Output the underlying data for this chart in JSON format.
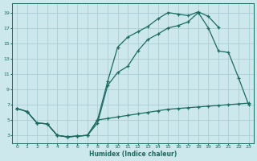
{
  "xlabel": "Humidex (Indice chaleur)",
  "bg_color": "#cce8ec",
  "grid_color": "#aacdd4",
  "line_color": "#1a6b60",
  "xlim": [
    -0.5,
    23.5
  ],
  "ylim": [
    2.0,
    20.2
  ],
  "xticks": [
    0,
    1,
    2,
    3,
    4,
    5,
    6,
    7,
    8,
    9,
    10,
    11,
    12,
    13,
    14,
    15,
    16,
    17,
    18,
    19,
    20,
    21,
    22,
    23
  ],
  "yticks": [
    3,
    5,
    7,
    9,
    11,
    13,
    15,
    17,
    19
  ],
  "line1_x": [
    0,
    1,
    2,
    3,
    4,
    5,
    6,
    7,
    8,
    9,
    10,
    11,
    12,
    13,
    14,
    15,
    16,
    17,
    18,
    19,
    20,
    21,
    22,
    23
  ],
  "line1_y": [
    6.5,
    6.1,
    4.6,
    4.5,
    3.0,
    2.8,
    2.9,
    3.0,
    5.0,
    10.0,
    14.5,
    15.8,
    16.5,
    17.2,
    18.2,
    19.0,
    18.8,
    18.6,
    19.1,
    18.5,
    17.1,
    null,
    null,
    null
  ],
  "line2_x": [
    0,
    1,
    2,
    3,
    4,
    5,
    6,
    7,
    8,
    9,
    10,
    11,
    12,
    13,
    14,
    15,
    16,
    17,
    18,
    19,
    20,
    21,
    22,
    23
  ],
  "line2_y": [
    6.5,
    6.1,
    4.6,
    4.5,
    3.0,
    2.8,
    2.9,
    3.0,
    4.6,
    9.5,
    11.2,
    12.0,
    14.0,
    15.5,
    16.2,
    17.0,
    17.3,
    17.8,
    19.0,
    17.0,
    14.0,
    13.8,
    10.5,
    7.0
  ],
  "line3_x": [
    0,
    1,
    2,
    3,
    4,
    5,
    6,
    7,
    8,
    9,
    10,
    11,
    12,
    13,
    14,
    15,
    16,
    17,
    18,
    19,
    20,
    21,
    22,
    23
  ],
  "line3_y": [
    6.5,
    6.1,
    4.6,
    4.5,
    3.0,
    2.8,
    2.9,
    3.0,
    5.0,
    5.2,
    5.4,
    5.6,
    5.8,
    6.0,
    6.2,
    6.4,
    6.5,
    6.6,
    6.7,
    6.8,
    6.9,
    7.0,
    7.1,
    7.2
  ]
}
